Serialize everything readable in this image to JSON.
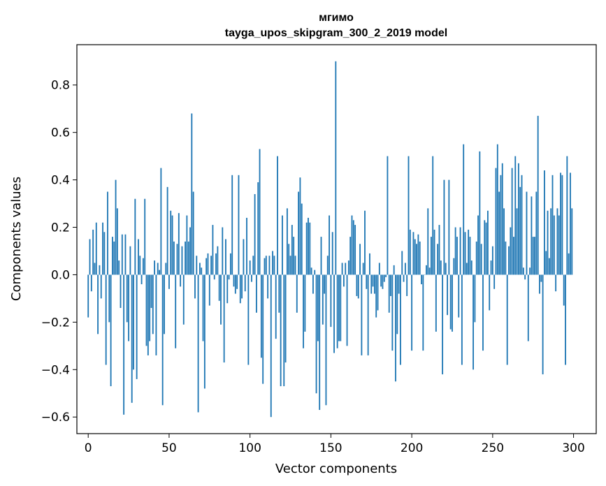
{
  "chart_data": {
    "type": "bar",
    "title_line1": "мгимо",
    "title_line2": "tayga_upos_skipgram_300_2_2019 model",
    "xlabel": "Vector components",
    "ylabel": "Components values",
    "xlim": [
      -7,
      314
    ],
    "ylim": [
      -0.67,
      0.97
    ],
    "x_ticks": [
      0,
      50,
      100,
      150,
      200,
      250,
      300
    ],
    "x_tick_labels": [
      "0",
      "50",
      "100",
      "150",
      "200",
      "250",
      "300"
    ],
    "y_ticks": [
      -0.6,
      -0.4,
      -0.2,
      0.0,
      0.2,
      0.4,
      0.6,
      0.8
    ],
    "y_tick_labels": [
      "−0.6",
      "−0.4",
      "−0.2",
      "0.0",
      "0.2",
      "0.4",
      "0.6",
      "0.8"
    ],
    "bar_color": "#1f77b4",
    "grid": false,
    "legend": "none",
    "values": [
      -0.18,
      0.15,
      -0.07,
      0.19,
      0.05,
      0.22,
      -0.25,
      0.04,
      -0.1,
      0.22,
      0.18,
      -0.38,
      0.35,
      -0.2,
      -0.47,
      0.16,
      0.14,
      0.4,
      0.28,
      0.06,
      -0.14,
      0.17,
      -0.59,
      0.17,
      -0.2,
      -0.28,
      0.12,
      -0.54,
      -0.4,
      0.32,
      -0.44,
      0.15,
      0.08,
      -0.04,
      0.07,
      0.32,
      -0.3,
      -0.34,
      -0.28,
      -0.14,
      -0.25,
      0.06,
      -0.34,
      0.05,
      0.02,
      0.45,
      -0.55,
      -0.25,
      0.05,
      0.37,
      -0.06,
      0.27,
      0.25,
      0.14,
      -0.31,
      0.13,
      0.26,
      -0.05,
      0.12,
      -0.21,
      0.14,
      0.25,
      0.14,
      0.2,
      0.68,
      0.35,
      -0.1,
      0.08,
      -0.58,
      0.05,
      0.03,
      -0.28,
      -0.48,
      0.07,
      0.09,
      -0.13,
      0.08,
      0.21,
      -0.02,
      0.09,
      0.12,
      -0.11,
      -0.21,
      0.2,
      -0.37,
      0.15,
      -0.12,
      -0.02,
      0.09,
      0.42,
      -0.05,
      -0.08,
      -0.06,
      0.42,
      -0.12,
      -0.1,
      0.15,
      -0.07,
      0.24,
      -0.38,
      0.06,
      -0.03,
      0.08,
      0.34,
      -0.16,
      0.39,
      0.53,
      -0.35,
      -0.46,
      0.07,
      0.08,
      -0.1,
      0.08,
      -0.6,
      0.1,
      0.08,
      -0.27,
      0.5,
      -0.16,
      -0.47,
      0.25,
      -0.47,
      -0.37,
      0.28,
      0.13,
      0.08,
      0.21,
      0.16,
      0.08,
      -0.16,
      0.35,
      0.41,
      0.3,
      -0.31,
      -0.24,
      0.22,
      0.24,
      0.22,
      0.03,
      -0.08,
      0.02,
      -0.5,
      -0.28,
      -0.57,
      0.16,
      -0.21,
      -0.08,
      -0.55,
      0.08,
      0.25,
      -0.22,
      0.18,
      -0.33,
      0.9,
      -0.31,
      -0.28,
      -0.28,
      0.05,
      -0.05,
      0.05,
      -0.3,
      0.06,
      0.16,
      0.25,
      0.23,
      0.21,
      -0.09,
      -0.1,
      0.13,
      -0.34,
      0.05,
      0.27,
      -0.06,
      -0.34,
      0.09,
      -0.08,
      -0.05,
      -0.08,
      -0.18,
      -0.15,
      0.05,
      -0.05,
      -0.06,
      -0.03,
      -0.01,
      0.5,
      -0.16,
      -0.09,
      -0.32,
      0.04,
      -0.45,
      -0.25,
      -0.08,
      -0.38,
      0.1,
      -0.03,
      0.05,
      -0.09,
      0.5,
      0.19,
      -0.32,
      0.18,
      0.15,
      0.13,
      0.17,
      0.14,
      -0.04,
      -0.32,
      0.0,
      0.04,
      0.28,
      0.03,
      0.16,
      0.5,
      0.19,
      -0.24,
      0.13,
      0.21,
      0.06,
      -0.42,
      0.4,
      0.05,
      -0.17,
      0.4,
      -0.23,
      -0.24,
      0.07,
      0.2,
      0.16,
      -0.18,
      0.2,
      -0.38,
      0.55,
      0.18,
      0.05,
      0.19,
      0.16,
      0.06,
      -0.4,
      -0.2,
      0.14,
      0.25,
      0.52,
      0.13,
      -0.32,
      0.23,
      0.22,
      0.27,
      -0.15,
      0.06,
      0.12,
      -0.06,
      0.45,
      0.55,
      0.35,
      0.42,
      0.47,
      0.28,
      0.14,
      -0.38,
      0.12,
      0.2,
      0.45,
      0.16,
      0.5,
      0.28,
      0.47,
      0.37,
      0.42,
      0.03,
      -0.02,
      0.35,
      -0.28,
      0.03,
      0.33,
      0.16,
      0.16,
      0.35,
      0.67,
      -0.08,
      -0.03,
      -0.42,
      0.44,
      0.1,
      0.27,
      0.07,
      0.28,
      0.42,
      0.25,
      -0.07,
      0.28,
      0.25,
      0.43,
      0.42,
      -0.13,
      -0.38,
      0.5,
      0.09,
      0.43,
      0.28
    ]
  }
}
